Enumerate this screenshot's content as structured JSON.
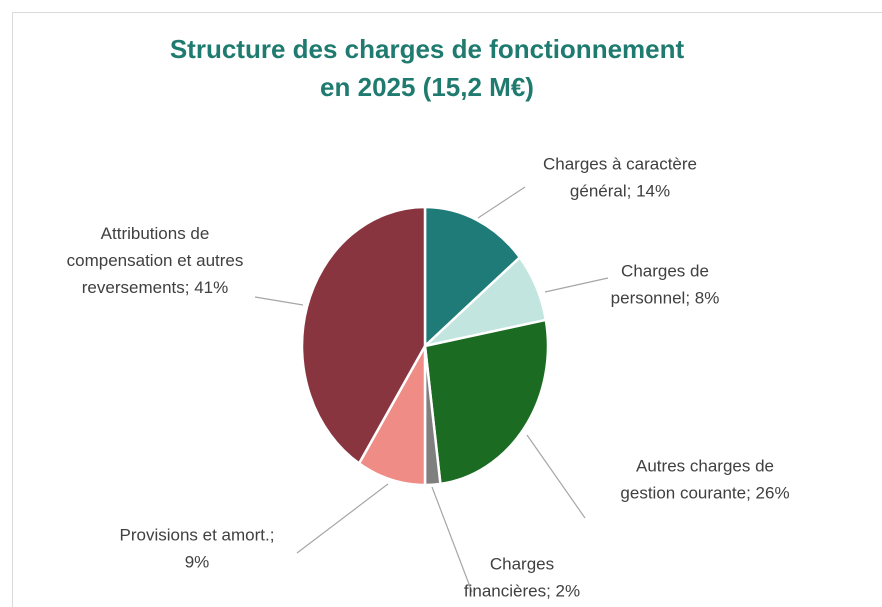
{
  "chart_data": {
    "type": "pie",
    "title": "Structure des charges de fonctionnement en 2025 (15,2 M€)",
    "values": [
      14,
      8,
      26,
      2,
      9,
      41
    ],
    "value_labels": [
      "Charges à caractère général; 14%",
      "Charges de personnel; 8%",
      "Autres charges de gestion courante; 26%",
      "Charges financières; 2%",
      "Provisions et amort.; 9%",
      "Attributions de compensation et autres reversements; 41%"
    ],
    "colors": [
      "#1f7b78",
      "#c2e5df",
      "#1b6b22",
      "#7f7f7f",
      "#f08c86",
      "#893540"
    ]
  }
}
